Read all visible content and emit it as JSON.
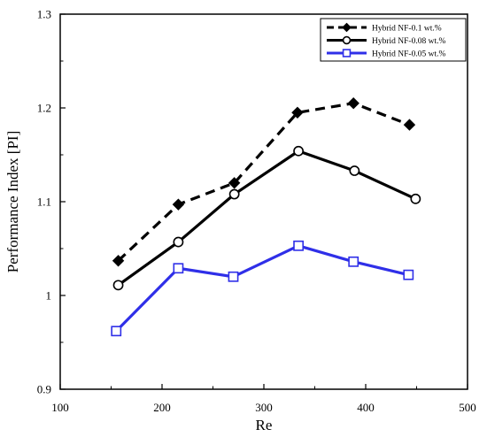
{
  "chart_data": {
    "type": "line",
    "xlabel": "Re",
    "ylabel": "Performance Index [PI]",
    "xlim": [
      100,
      500
    ],
    "ylim": [
      0.9,
      1.3
    ],
    "xticks": [
      100,
      200,
      300,
      400,
      500
    ],
    "yticks": [
      0.9,
      1,
      1.1,
      1.2,
      1.3
    ],
    "xtick_labels": [
      "100",
      "200",
      "300",
      "400",
      "500"
    ],
    "ytick_labels": [
      "0.9",
      "1",
      "1.1",
      "1.2",
      "1.3"
    ],
    "grid": false,
    "legend_position": "top-right",
    "series": [
      {
        "name": "Hybrid NF-0.1 wt.%",
        "color": "#000000",
        "line_style": "dashed",
        "marker": "filled-diamond",
        "x": [
          157,
          216,
          271,
          333,
          388,
          443
        ],
        "y": [
          1.037,
          1.097,
          1.12,
          1.195,
          1.205,
          1.182
        ]
      },
      {
        "name": "Hybrid NF-0.08 wt.%",
        "color": "#000000",
        "line_style": "solid",
        "marker": "open-circle",
        "x": [
          157,
          216,
          271,
          334,
          389,
          449
        ],
        "y": [
          1.011,
          1.057,
          1.108,
          1.154,
          1.133,
          1.103
        ]
      },
      {
        "name": "Hybrid NF-0.05 wt.%",
        "color": "#2f2fe8",
        "line_style": "solid",
        "marker": "open-square",
        "x": [
          155,
          216,
          270,
          334,
          388,
          442
        ],
        "y": [
          0.962,
          1.029,
          1.02,
          1.053,
          1.036,
          1.022
        ]
      }
    ]
  }
}
